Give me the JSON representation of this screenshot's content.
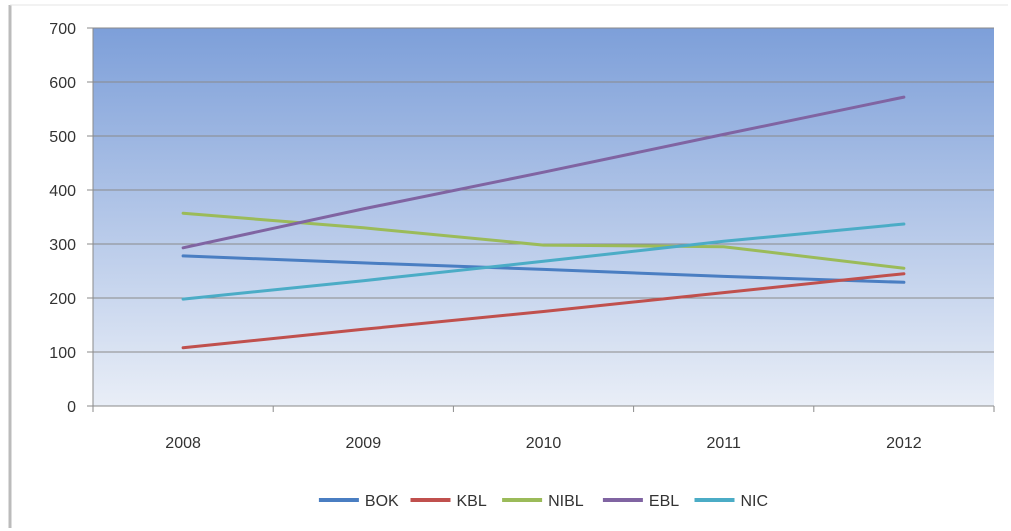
{
  "chart_data": {
    "type": "line",
    "title": "",
    "xlabel": "",
    "ylabel": "",
    "categories": [
      "2008",
      "2009",
      "2010",
      "2011",
      "2012"
    ],
    "ylim": [
      0,
      700
    ],
    "yticks": [
      0,
      100,
      200,
      300,
      400,
      500,
      600,
      700
    ],
    "grid": true,
    "legend_position": "bottom",
    "plot_background": [
      "#7d9fd9",
      "#e9eef7"
    ],
    "series": [
      {
        "name": "BOK",
        "color": "#4a7ec2",
        "values": [
          278,
          265,
          253,
          240,
          229
        ]
      },
      {
        "name": "KBL",
        "color": "#c0504d",
        "values": [
          108,
          142,
          175,
          210,
          245
        ]
      },
      {
        "name": "NIBL",
        "color": "#9bbb59",
        "values": [
          357,
          330,
          298,
          295,
          255
        ]
      },
      {
        "name": "EBL",
        "color": "#8064a2",
        "values": [
          293,
          365,
          433,
          503,
          572
        ]
      },
      {
        "name": "NIC",
        "color": "#4bacc6",
        "values": [
          198,
          232,
          268,
          305,
          337
        ]
      }
    ]
  }
}
